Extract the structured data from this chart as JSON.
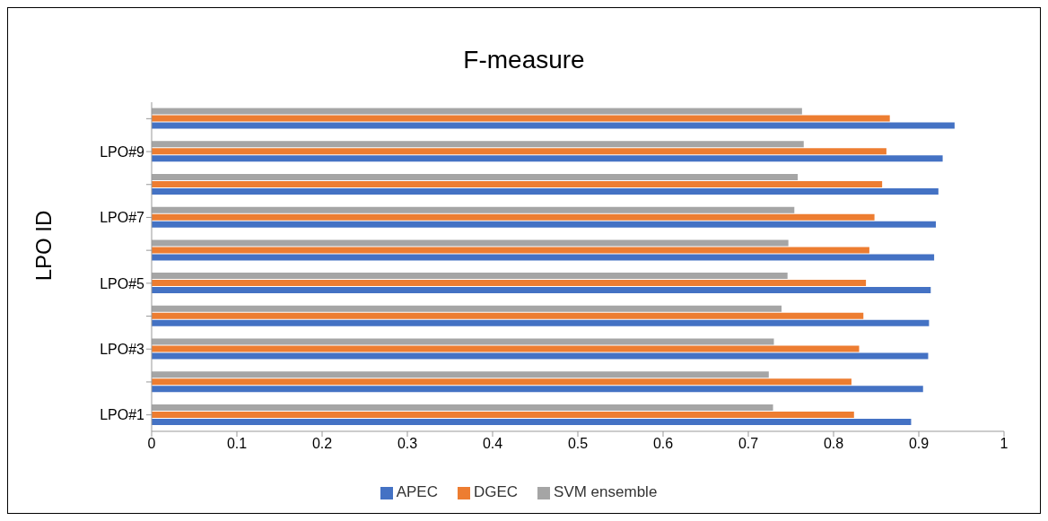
{
  "chart_data": {
    "type": "bar",
    "orientation": "horizontal",
    "title": "F-measure",
    "ylabel": "LPO ID",
    "categories": [
      null,
      "LPO#9",
      null,
      "LPO#7",
      null,
      "LPO#5",
      null,
      "LPO#3",
      null,
      "LPO#1"
    ],
    "series": [
      {
        "name": "SVM ensemble",
        "color": "#a5a5a5",
        "values": [
          0.763,
          0.765,
          0.758,
          0.754,
          0.747,
          0.746,
          0.739,
          0.73,
          0.724,
          0.729
        ]
      },
      {
        "name": "DGEC",
        "color": "#ed7d31",
        "values": [
          0.866,
          0.862,
          0.857,
          0.848,
          0.842,
          0.838,
          0.835,
          0.83,
          0.821,
          0.824
        ]
      },
      {
        "name": "APEC",
        "color": "#4472c4",
        "values": [
          0.942,
          0.928,
          0.923,
          0.92,
          0.918,
          0.914,
          0.912,
          0.911,
          0.905,
          0.891
        ]
      }
    ],
    "xlim": [
      0,
      1
    ],
    "xticks": [
      0,
      0.1,
      0.2,
      0.3,
      0.4,
      0.5,
      0.6,
      0.7,
      0.8,
      0.9,
      1
    ],
    "grid": false,
    "legend": "bottom"
  }
}
